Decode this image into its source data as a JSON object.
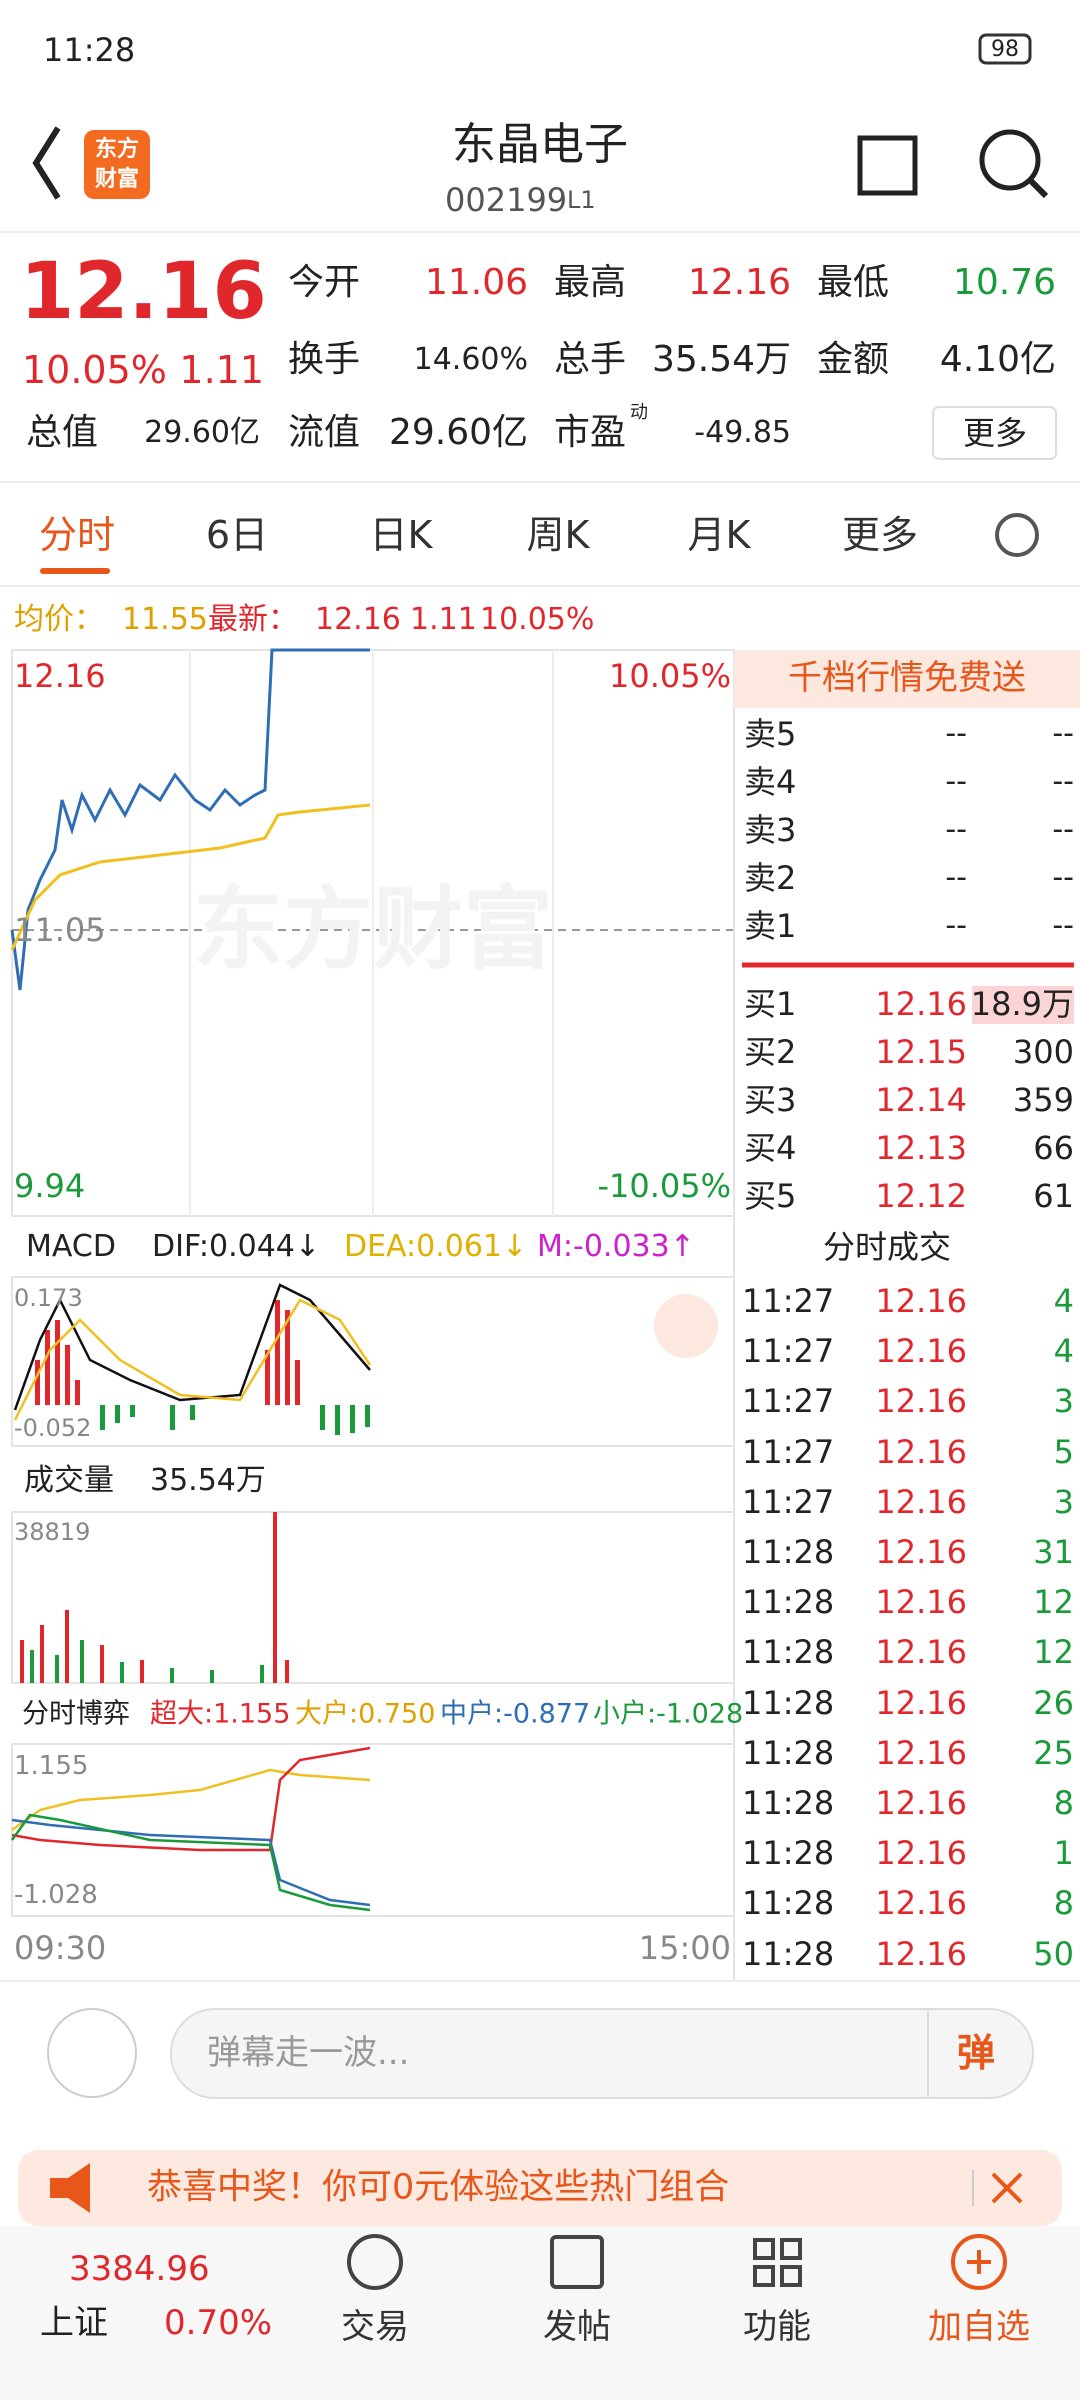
{
  "status": {
    "time": "11:28",
    "battery": "98"
  },
  "header": {
    "logo": [
      "东方",
      "财富"
    ],
    "title": "东晶电子",
    "code": "002199",
    "level": "L1"
  },
  "quote": {
    "price": "12.16",
    "change_pct": "10.05%",
    "change": "1.11",
    "fields": [
      {
        "label": "今开",
        "value": "11.06"
      },
      {
        "label": "最高",
        "value": "12.16"
      },
      {
        "label": "最低",
        "value": "10.76"
      },
      {
        "label": "换手",
        "value": "14.60%"
      },
      {
        "label": "总手",
        "value": "35.54万"
      },
      {
        "label": "金额",
        "value": "4.10亿"
      },
      {
        "label": "总值",
        "value": "29.60亿"
      },
      {
        "label": "流值",
        "value": "29.60亿"
      },
      {
        "label": "市盈",
        "value": "-49.85",
        "note": "动"
      }
    ],
    "more": "更多"
  },
  "tabs": [
    "分时",
    "6日",
    "日K",
    "周K",
    "月K",
    "更多"
  ],
  "summary": {
    "avg_label": "均价：",
    "avg": "11.55",
    "latest_label": "最新：",
    "latest": "12.16",
    "change": "1.11",
    "change_pct": "10.05%"
  },
  "chart": {
    "top": "12.16",
    "mid": "11.05",
    "bottom": "9.94",
    "top_pct": "10.05%",
    "bottom_pct": "-10.05%",
    "watermark": "东方财富",
    "time_start": "09:30",
    "time_end": "15:00"
  },
  "macd": {
    "label": "MACD",
    "dif": "DIF:0.044↓",
    "dea": "DEA:0.061↓",
    "m": "M:-0.033↑",
    "max": "0.173",
    "min": "-0.052"
  },
  "volume": {
    "label": "成交量",
    "value": "35.54万",
    "max": "38819"
  },
  "game": {
    "label": "分时博弈",
    "items": [
      "超大:1.155",
      "大户:0.750",
      "中户:-0.877",
      "小户:-1.028"
    ],
    "max": "1.155",
    "min": "-1.028"
  },
  "orderbook": {
    "banner": "千档行情免费送",
    "asks": [
      {
        "label": "卖5",
        "price": "--",
        "volume": "--"
      },
      {
        "label": "卖4",
        "price": "--",
        "volume": "--"
      },
      {
        "label": "卖3",
        "price": "--",
        "volume": "--"
      },
      {
        "label": "卖2",
        "price": "--",
        "volume": "--"
      },
      {
        "label": "卖1",
        "price": "--",
        "volume": "--"
      }
    ],
    "bids": [
      {
        "label": "买1",
        "price": "12.16",
        "volume": "18.9万"
      },
      {
        "label": "买2",
        "price": "12.15",
        "volume": "300"
      },
      {
        "label": "买3",
        "price": "12.14",
        "volume": "359"
      },
      {
        "label": "买4",
        "price": "12.13",
        "volume": "66"
      },
      {
        "label": "买5",
        "price": "12.12",
        "volume": "61"
      }
    ]
  },
  "trades": {
    "title": "分时成交",
    "rows": [
      [
        "11:27",
        "12.16",
        "4"
      ],
      [
        "11:27",
        "12.16",
        "4"
      ],
      [
        "11:27",
        "12.16",
        "3"
      ],
      [
        "11:27",
        "12.16",
        "5"
      ],
      [
        "11:27",
        "12.16",
        "3"
      ],
      [
        "11:28",
        "12.16",
        "31"
      ],
      [
        "11:28",
        "12.16",
        "12"
      ],
      [
        "11:28",
        "12.16",
        "12"
      ],
      [
        "11:28",
        "12.16",
        "26"
      ],
      [
        "11:28",
        "12.16",
        "25"
      ],
      [
        "11:28",
        "12.16",
        "8"
      ],
      [
        "11:28",
        "12.16",
        "1"
      ],
      [
        "11:28",
        "12.16",
        "8"
      ],
      [
        "11:28",
        "12.16",
        "50"
      ]
    ]
  },
  "comment": {
    "placeholder": "弹幕走一波...",
    "button": "弹"
  },
  "promo": {
    "text": "恭喜中奖！你可0元体验这些热门组合"
  },
  "nav": {
    "index_value": "3384.96",
    "index_name": "上证",
    "index_change": "0.70%",
    "items": [
      "交易",
      "发帖",
      "功能",
      "加自选"
    ]
  }
}
